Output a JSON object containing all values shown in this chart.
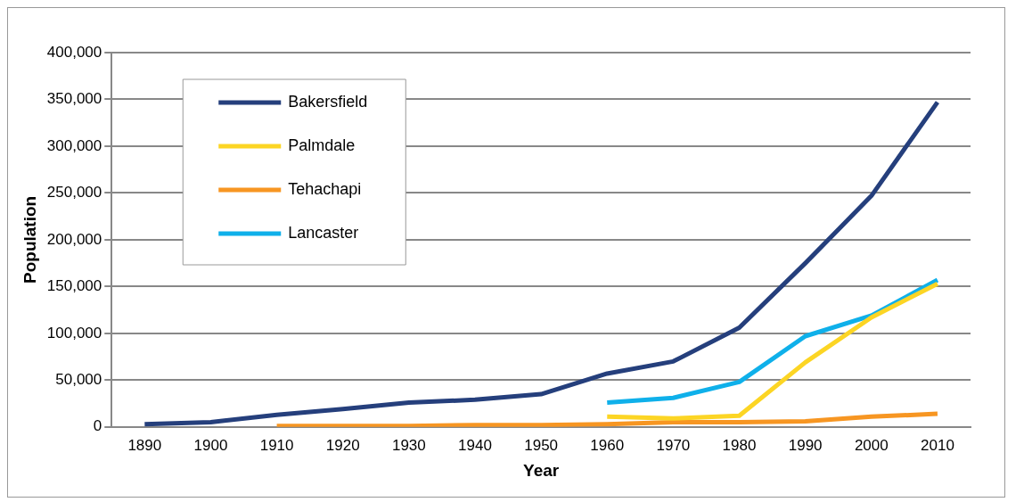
{
  "chart_data": {
    "type": "line",
    "xlabel": "Year",
    "ylabel": "Population",
    "categories": [
      "1890",
      "1900",
      "1910",
      "1920",
      "1930",
      "1940",
      "1950",
      "1960",
      "1970",
      "1980",
      "1990",
      "2000",
      "2010"
    ],
    "series": [
      {
        "name": "Bakersfield",
        "color": "#253f7c",
        "values": [
          3000,
          5000,
          13000,
          19000,
          26000,
          29000,
          35000,
          57000,
          70000,
          106000,
          175000,
          247000,
          347000
        ]
      },
      {
        "name": "Palmdale",
        "color": "#fcd524",
        "values": [
          null,
          null,
          null,
          null,
          null,
          null,
          null,
          11000,
          9000,
          12000,
          69000,
          117000,
          153000
        ]
      },
      {
        "name": "Tehachapi",
        "color": "#f79622",
        "values": [
          null,
          null,
          1000,
          1000,
          1000,
          2000,
          2000,
          3000,
          5000,
          5000,
          6000,
          11000,
          14000
        ]
      },
      {
        "name": "Lancaster",
        "color": "#0fb0ea",
        "values": [
          null,
          null,
          null,
          null,
          null,
          null,
          null,
          26000,
          31000,
          48000,
          97000,
          119000,
          157000
        ]
      }
    ],
    "ylim": [
      0,
      400000
    ],
    "yticks": [
      {
        "value": 0,
        "label": "0"
      },
      {
        "value": 50000,
        "label": "50,000"
      },
      {
        "value": 100000,
        "label": "100,000"
      },
      {
        "value": 150000,
        "label": "150,000"
      },
      {
        "value": 200000,
        "label": "200,000"
      },
      {
        "value": 250000,
        "label": "250,000"
      },
      {
        "value": 300000,
        "label": "300,000"
      },
      {
        "value": 350000,
        "label": "350,000"
      },
      {
        "value": 400000,
        "label": "400,000"
      }
    ],
    "grid": "y",
    "legend": "top left",
    "marker": "none",
    "line_style": "solid"
  }
}
